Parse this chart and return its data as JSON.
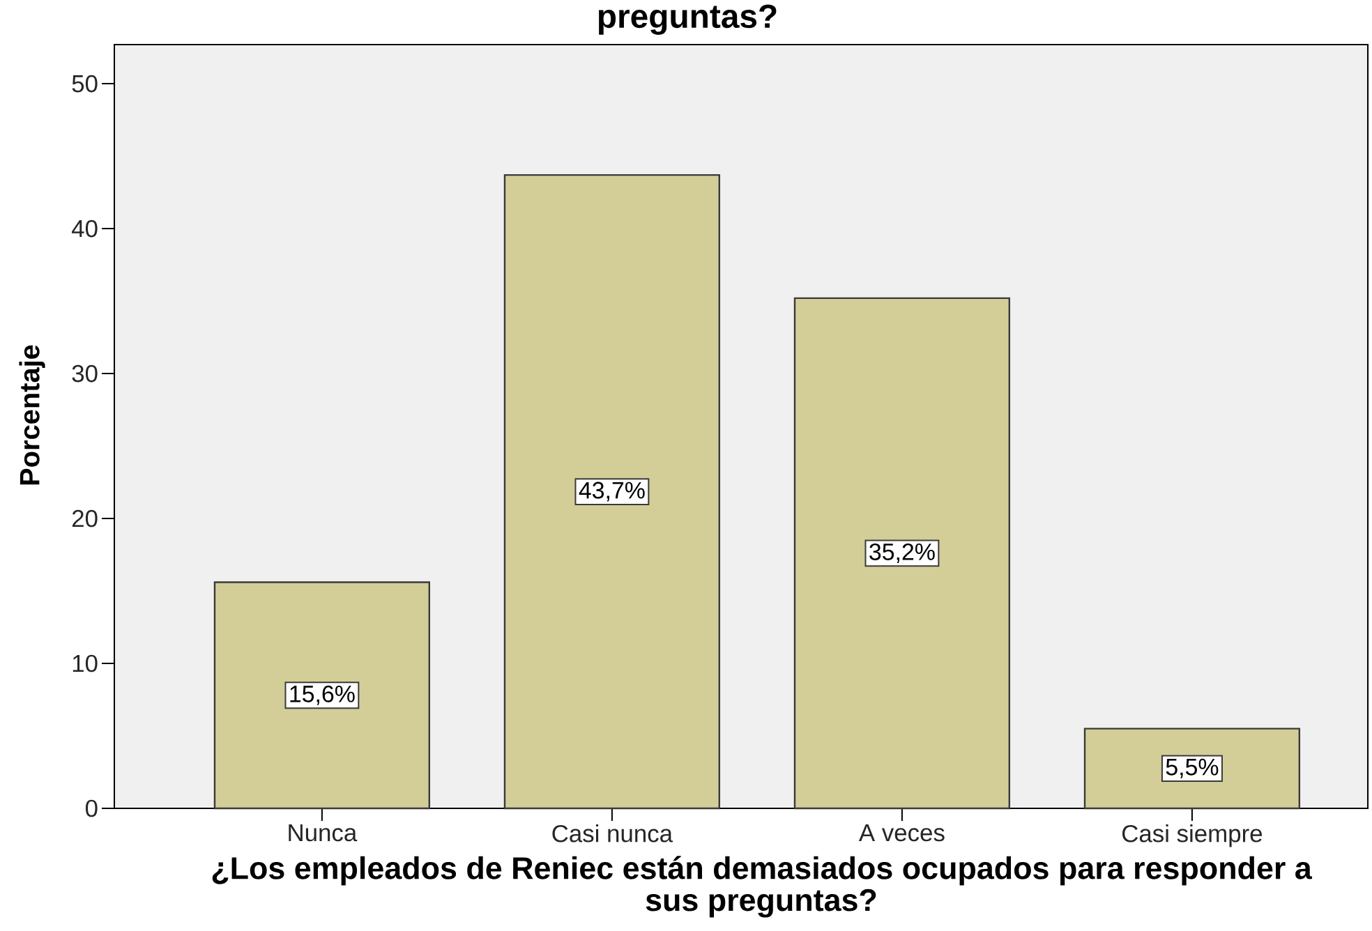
{
  "chart_data": {
    "type": "bar",
    "title": "preguntas?",
    "xlabel": "¿Los empleados de Reniec están demasiados ocupados para responder a sus preguntas?",
    "ylabel": "Porcentaje",
    "categories": [
      "Nunca",
      "Casi nunca",
      "A veces",
      "Casi siempre"
    ],
    "values": [
      15.6,
      43.7,
      35.2,
      5.5
    ],
    "value_labels": [
      "15,6%",
      "43,7%",
      "35,2%",
      "5,5%"
    ],
    "color": "#d3ce98",
    "ylim": [
      0,
      52.7
    ],
    "yticks": [
      0,
      10,
      20,
      30,
      40,
      50
    ]
  }
}
